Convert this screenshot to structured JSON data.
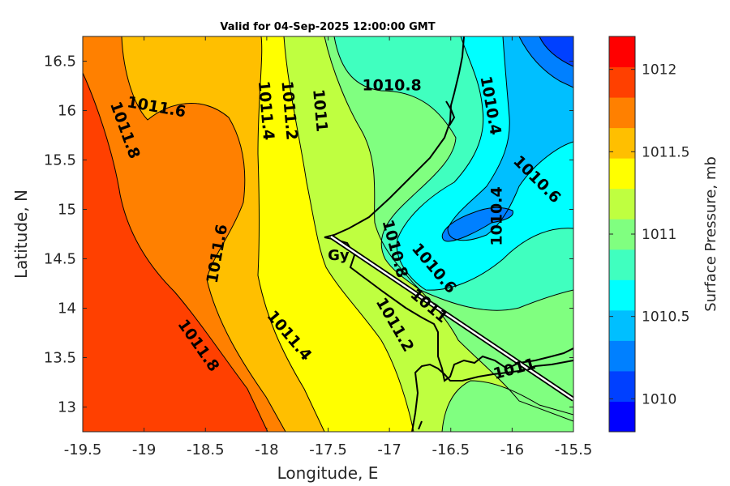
{
  "title": "Valid for 04-Sep-2025 12:00:00 GMT",
  "chart_data": {
    "type": "contour-map",
    "xlabel": "Longitude, E",
    "ylabel": "Latitude, N",
    "xlim": [
      -19.5,
      -15.5
    ],
    "ylim": [
      12.75,
      16.75
    ],
    "x_ticks": [
      "-19.5",
      "-19",
      "-18.5",
      "-18",
      "-17.5",
      "-17",
      "-16.5",
      "-16",
      "-15.5"
    ],
    "y_ticks": [
      "13",
      "13.5",
      "14",
      "14.5",
      "15",
      "15.5",
      "16",
      "16.5"
    ],
    "colorbar": {
      "label": "Surface Pressure, mb",
      "range": [
        1009.8,
        1012.2
      ],
      "step": 0.2,
      "ticks": [
        "1010",
        "1010.5",
        "1011",
        "1011.5",
        "1012"
      ],
      "colors": [
        "#0000ff",
        "#0040ff",
        "#0080ff",
        "#00bfff",
        "#00ffff",
        "#40ffbf",
        "#80ff80",
        "#bfff40",
        "#ffff00",
        "#ffbf00",
        "#ff8000",
        "#ff4000",
        "#ff0000"
      ]
    },
    "contour_labels": [
      {
        "text": "1011.8",
        "lon": -19.16,
        "lat": 15.8
      },
      {
        "text": "1011.6",
        "lon": -18.9,
        "lat": 16.03
      },
      {
        "text": "1011.4",
        "lon": -18.01,
        "lat": 16.0
      },
      {
        "text": "1011.2",
        "lon": -17.82,
        "lat": 16.0
      },
      {
        "text": "1011",
        "lon": -17.57,
        "lat": 16.0
      },
      {
        "text": "1010.8",
        "lon": -16.98,
        "lat": 16.25
      },
      {
        "text": "1010.4",
        "lon": -16.18,
        "lat": 16.05
      },
      {
        "text": "1010.6",
        "lon": -15.8,
        "lat": 15.3
      },
      {
        "text": "1010.4",
        "lon": -16.12,
        "lat": 14.93
      },
      {
        "text": "1011.6",
        "lon": -18.4,
        "lat": 14.55
      },
      {
        "text": "1010.8",
        "lon": -16.96,
        "lat": 14.6
      },
      {
        "text": "1010.6",
        "lon": -16.64,
        "lat": 14.4
      },
      {
        "text": "1011",
        "lon": -16.68,
        "lat": 14.02
      },
      {
        "text": "1011.8",
        "lon": -18.56,
        "lat": 13.62
      },
      {
        "text": "1011.4",
        "lon": -17.82,
        "lat": 13.72
      },
      {
        "text": "1011.2",
        "lon": -16.96,
        "lat": 13.83
      },
      {
        "text": "1011",
        "lon": -15.98,
        "lat": 13.38
      }
    ],
    "places": [
      {
        "text": "Gy",
        "lon": -17.45,
        "lat": 14.7
      }
    ],
    "track_line": {
      "from": {
        "lon": -17.45,
        "lat": 14.7
      },
      "to": {
        "lon": -15.5,
        "lat": 13.05
      }
    },
    "grid": false,
    "colorbar_position": "right"
  }
}
